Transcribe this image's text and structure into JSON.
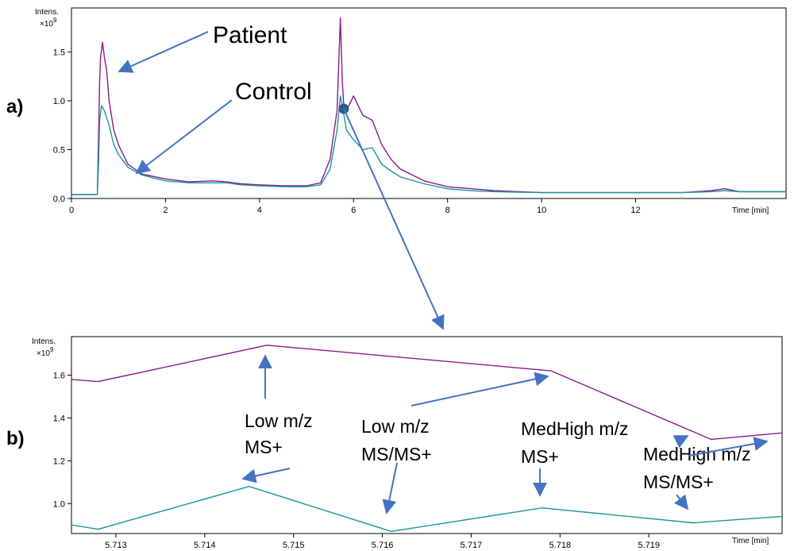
{
  "panel_labels": {
    "a": "a)",
    "b": "b)"
  },
  "chart_data": [
    {
      "type": "line",
      "panel": "a",
      "ylabel": "Intens.",
      "yunit": "x10^9",
      "xlabel": "Time [min]",
      "xlim": [
        0,
        15.2
      ],
      "ylim": [
        0,
        1.95
      ],
      "xticks": [
        0,
        2,
        4,
        6,
        8,
        10,
        12
      ],
      "yticks": [
        0.0,
        0.5,
        1.0,
        1.5
      ],
      "ytick_labels": [
        "0.0",
        "0.5",
        "1.0",
        "1.5"
      ],
      "grid": false,
      "series": [
        {
          "name": "Patient",
          "color": "#8B1A8B",
          "x": [
            0,
            0.55,
            0.58,
            0.6,
            0.62,
            0.66,
            0.7,
            0.75,
            0.8,
            0.9,
            1.0,
            1.2,
            1.5,
            2.0,
            2.5,
            3.0,
            3.3,
            3.6,
            4.0,
            4.5,
            5.0,
            5.3,
            5.5,
            5.65,
            5.72,
            5.76,
            5.8,
            5.9,
            6.0,
            6.2,
            6.4,
            6.6,
            6.8,
            7.0,
            7.5,
            8.0,
            8.5,
            9.0,
            10.0,
            11.0,
            12.0,
            13.0,
            13.6,
            13.9,
            14.2,
            14.6,
            15.0,
            15.2
          ],
          "values": [
            0.04,
            0.04,
            0.7,
            1.2,
            1.45,
            1.6,
            1.45,
            1.3,
            1.0,
            0.7,
            0.55,
            0.35,
            0.25,
            0.2,
            0.17,
            0.18,
            0.17,
            0.15,
            0.14,
            0.13,
            0.13,
            0.16,
            0.4,
            0.9,
            1.85,
            1.2,
            0.9,
            0.95,
            1.05,
            0.85,
            0.8,
            0.55,
            0.4,
            0.3,
            0.18,
            0.12,
            0.1,
            0.08,
            0.06,
            0.06,
            0.06,
            0.06,
            0.08,
            0.1,
            0.07,
            0.07,
            0.07,
            0.07
          ]
        },
        {
          "name": "Control",
          "color": "#1A9696",
          "x": [
            0,
            0.55,
            0.58,
            0.6,
            0.64,
            0.7,
            0.8,
            0.9,
            1.0,
            1.2,
            1.5,
            2.0,
            2.5,
            3.0,
            3.3,
            3.6,
            4.0,
            4.5,
            5.0,
            5.3,
            5.5,
            5.65,
            5.72,
            5.78,
            5.85,
            6.0,
            6.2,
            6.4,
            6.6,
            6.8,
            7.0,
            7.5,
            8.0,
            8.5,
            9.0,
            10.0,
            11.0,
            12.0,
            13.0,
            13.6,
            13.9,
            14.2,
            14.6,
            15.0,
            15.2
          ],
          "values": [
            0.04,
            0.04,
            0.4,
            0.8,
            0.95,
            0.9,
            0.75,
            0.55,
            0.45,
            0.32,
            0.24,
            0.18,
            0.16,
            0.16,
            0.16,
            0.14,
            0.13,
            0.12,
            0.12,
            0.14,
            0.3,
            0.7,
            1.05,
            0.9,
            0.7,
            0.6,
            0.5,
            0.52,
            0.35,
            0.28,
            0.22,
            0.15,
            0.1,
            0.08,
            0.07,
            0.06,
            0.06,
            0.06,
            0.06,
            0.07,
            0.08,
            0.07,
            0.07,
            0.07,
            0.07
          ]
        }
      ],
      "annotations": [
        "Patient",
        "Control"
      ]
    },
    {
      "type": "line",
      "panel": "b",
      "ylabel": "Intens.",
      "yunit": "x10^9",
      "xlabel": "Time [min]",
      "xlim": [
        5.7125,
        5.7205
      ],
      "ylim": [
        0.86,
        1.78
      ],
      "xticks": [
        5.713,
        5.714,
        5.715,
        5.716,
        5.717,
        5.718,
        5.719
      ],
      "xtick_labels": [
        "5.713",
        "5.714",
        "5.715",
        "5.716",
        "5.717",
        "5.718",
        "5.719"
      ],
      "yticks": [
        1.0,
        1.2,
        1.4,
        1.6
      ],
      "ytick_labels": [
        "1.0",
        "1.2",
        "1.4",
        "1.6"
      ],
      "grid": false,
      "series": [
        {
          "color": "#8B1A8B",
          "x": [
            5.7125,
            5.7128,
            5.7147,
            5.7179,
            5.7197,
            5.7205
          ],
          "values": [
            1.58,
            1.57,
            1.74,
            1.62,
            1.3,
            1.33
          ]
        },
        {
          "color": "#1A9696",
          "x": [
            5.7125,
            5.7128,
            5.7145,
            5.7161,
            5.7178,
            5.7195,
            5.7205
          ],
          "values": [
            0.9,
            0.88,
            1.08,
            0.87,
            0.98,
            0.91,
            0.94
          ]
        }
      ],
      "annotations": [
        {
          "line1": "Low m/z",
          "line2": "MS+"
        },
        {
          "line1": "Low m/z",
          "line2": "MS/MS+"
        },
        {
          "line1": "MedHigh m/z",
          "line2": "MS+"
        },
        {
          "line1": "MedHigh m/z",
          "line2": "MS/MS+"
        }
      ]
    }
  ],
  "colors": {
    "arrow": "#4472C4",
    "marker": "#2E5A8A",
    "axis": "#000000"
  }
}
